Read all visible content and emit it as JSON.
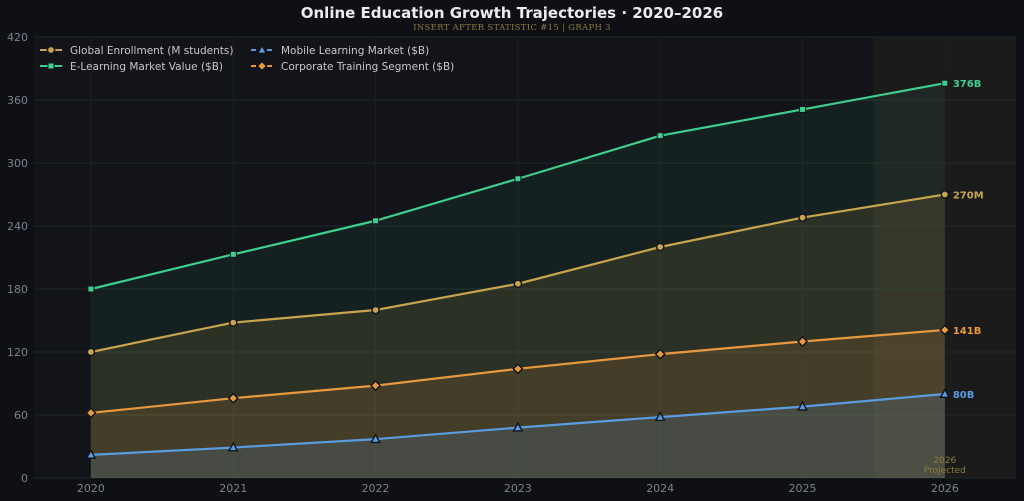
{
  "title": "Online Education Growth Trajectories · 2020–2026",
  "subtitle": "INSERT AFTER STATISTIC #15  |  GRAPH 3",
  "chart_data": {
    "type": "line",
    "title": "Online Education Growth Trajectories · 2020–2026",
    "subtitle": "INSERT AFTER STATISTIC #15  |  GRAPH 3",
    "xlabel": "",
    "ylabel": "",
    "x": [
      2020,
      2021,
      2022,
      2023,
      2024,
      2025,
      2026
    ],
    "xlim": [
      2019.6,
      2026.5
    ],
    "ylim": [
      0,
      420
    ],
    "yticks": [
      0,
      60,
      120,
      180,
      240,
      300,
      360,
      420
    ],
    "grid": true,
    "legend_position": "top-left",
    "projection": {
      "start": 2025.5,
      "end": 2026.5,
      "label_line1": "2026",
      "label_line2": "Projected",
      "color": "#8a7a3c"
    },
    "series": [
      {
        "name": "Global Enrollment (M students)",
        "values": [
          120,
          148,
          160,
          185,
          220,
          248,
          270
        ],
        "color": "#c9a44e",
        "marker": "circle",
        "dashed": false,
        "end_label": "270M"
      },
      {
        "name": "E-Learning Market Value ($B)",
        "values": [
          180,
          213,
          245,
          285,
          326,
          351,
          376
        ],
        "color": "#3ecf8e",
        "marker": "square",
        "dashed": false,
        "end_label": "376B"
      },
      {
        "name": "Mobile Learning Market ($B)",
        "values": [
          22,
          29,
          37,
          48,
          58,
          68,
          80
        ],
        "color": "#5b9be0",
        "marker": "triangle",
        "dashed": true,
        "end_label": "80B"
      },
      {
        "name": "Corporate Training Segment ($B)",
        "values": [
          62,
          76,
          88,
          104,
          118,
          130,
          141
        ],
        "color": "#e8993f",
        "marker": "diamond",
        "dashed": true,
        "end_label": "141B"
      }
    ]
  }
}
